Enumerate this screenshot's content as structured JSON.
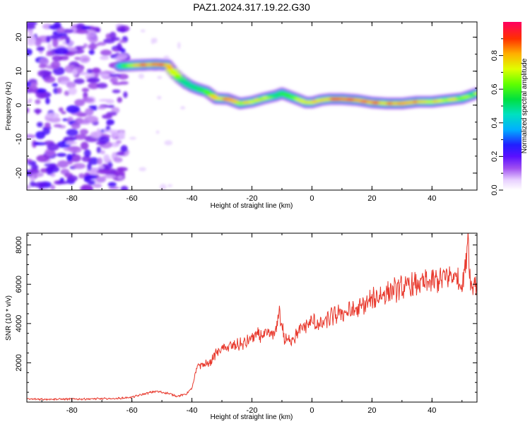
{
  "title": "PAZ1.2024.317.19.22.G30",
  "chart_data": [
    {
      "type": "heatmap",
      "xlabel": "Height of straight line (km)",
      "ylabel": "Frequency (Hz)",
      "xlim": [
        -95,
        55
      ],
      "ylim": [
        -25,
        24.5
      ],
      "x_ticks": [
        -80,
        -60,
        -40,
        -20,
        0,
        20,
        40
      ],
      "y_ticks": [
        -20,
        -10,
        0,
        10,
        20
      ],
      "grid": false,
      "colormap": [
        "#ffffff",
        "#d9b3ff",
        "#8a2be2",
        "#3300ff",
        "#00c8ff",
        "#00e08a",
        "#40ff00",
        "#e0ff00",
        "#ffb000",
        "#ff3000",
        "#ff0060"
      ],
      "colorbar": {
        "label": "Normalized spectral amplitude",
        "range": [
          0,
          1
        ],
        "ticks": [
          "0.0",
          "0.2",
          "0.4",
          "0.6",
          "0.8"
        ]
      },
      "ridge": {
        "x": [
          -64,
          -58,
          -52,
          -48,
          -46,
          -44,
          -42,
          -40,
          -38,
          -35,
          -32,
          -28,
          -24,
          -20,
          -16,
          -12,
          -10,
          -7,
          -4,
          -2,
          0,
          3,
          6,
          10,
          15,
          20,
          25,
          30,
          35,
          40,
          45,
          50,
          55
        ],
        "freq": [
          11.5,
          11.8,
          12.0,
          11.8,
          9.5,
          7.8,
          6.5,
          5.5,
          4.8,
          4.0,
          2.0,
          1.8,
          0.5,
          1.0,
          2.0,
          2.8,
          3.5,
          2.5,
          1.5,
          0.8,
          0.8,
          1.5,
          1.8,
          1.8,
          1.5,
          0.8,
          0.5,
          0.5,
          1.0,
          1.0,
          1.5,
          2.0,
          3.5
        ],
        "amplitude": [
          0.5,
          0.9,
          0.95,
          0.85,
          0.7,
          0.6,
          0.5,
          0.5,
          0.55,
          0.6,
          0.8,
          0.85,
          0.7,
          0.75,
          0.7,
          0.6,
          0.5,
          0.65,
          0.7,
          0.75,
          0.75,
          0.8,
          0.85,
          0.9,
          0.9,
          0.9,
          0.85,
          0.9,
          0.9,
          0.8,
          0.75,
          0.7,
          0.55
        ]
      },
      "noise_region_x": [
        -95,
        -62
      ]
    },
    {
      "type": "line",
      "xlabel": "Height of straight line (km)",
      "ylabel": "SNR (10 * v/v)",
      "xlim": [
        -95,
        55
      ],
      "ylim": [
        0,
        8600
      ],
      "x_ticks": [
        -80,
        -60,
        -40,
        -20,
        0,
        20,
        40
      ],
      "y_ticks": [
        2000,
        4000,
        6000,
        8000
      ],
      "grid": false,
      "series": [
        {
          "color": "#e8392d",
          "x": [
            -95,
            -80,
            -65,
            -60,
            -55,
            -52,
            -48,
            -45,
            -42,
            -40,
            -38,
            -36,
            -34,
            -32,
            -30,
            -28,
            -25,
            -22,
            -20,
            -18,
            -15,
            -12,
            -11,
            -9,
            -6,
            -3,
            0,
            3,
            6,
            9,
            12,
            15,
            18,
            21,
            24,
            27,
            30,
            33,
            36,
            39,
            42,
            45,
            48,
            50,
            51,
            52,
            53,
            54,
            55
          ],
          "y": [
            150,
            150,
            180,
            250,
            450,
            550,
            450,
            300,
            400,
            700,
            1900,
            1900,
            2000,
            2500,
            2700,
            2800,
            2900,
            3000,
            3300,
            3400,
            3400,
            3500,
            4700,
            3100,
            3300,
            3800,
            4100,
            3900,
            4300,
            4500,
            4600,
            4700,
            5000,
            5300,
            5500,
            5700,
            5800,
            5900,
            6000,
            6100,
            6200,
            6400,
            6400,
            6000,
            6700,
            8500,
            5700,
            6200,
            6000
          ]
        }
      ]
    }
  ]
}
